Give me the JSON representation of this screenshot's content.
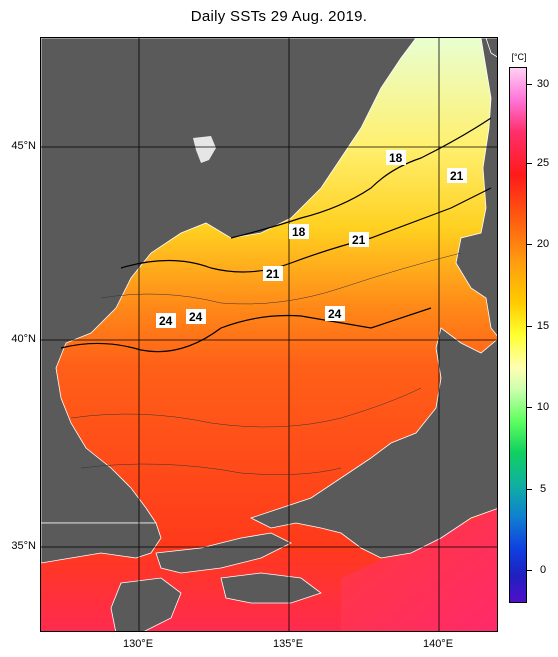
{
  "title": "Daily SSTs 29 Aug. 2019.",
  "map": {
    "lat_labels": [
      "45°N",
      "40°N",
      "35°N"
    ],
    "lon_labels": [
      "130°E",
      "135°E",
      "140°E"
    ],
    "contour_labels": [
      "18",
      "18",
      "21",
      "21",
      "21",
      "24",
      "24",
      "24"
    ]
  },
  "colorbar": {
    "unit": "[°C]",
    "ticks": [
      "30",
      "25",
      "20",
      "15",
      "10",
      "5",
      "0"
    ]
  },
  "colors": {
    "land": "#5a5a5a",
    "warm_sea": "#ff5a1a",
    "cool_sea": "#ffff66"
  }
}
